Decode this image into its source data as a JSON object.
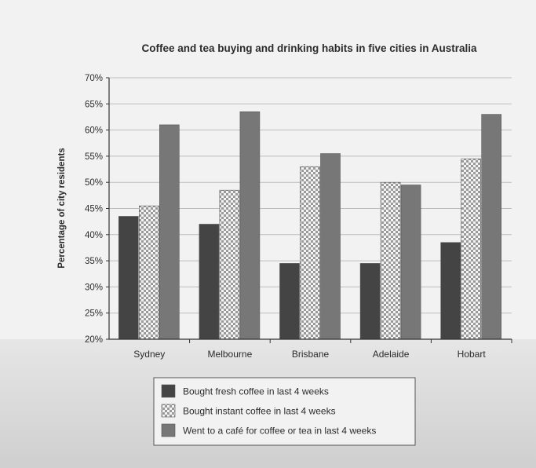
{
  "chart_data": {
    "type": "bar",
    "title": "Coffee and tea buying and drinking habits in five cities in Australia",
    "xlabel": "",
    "ylabel": "Percentage of city residents",
    "categories": [
      "Sydney",
      "Melbourne",
      "Brisbane",
      "Adelaide",
      "Hobart"
    ],
    "series": [
      {
        "name": "Bought fresh coffee in last 4 weeks",
        "values": [
          43.5,
          42,
          34.5,
          34.5,
          38.5
        ],
        "color": "#444444",
        "pattern": "solid"
      },
      {
        "name": "Bought instant coffee in last 4 weeks",
        "values": [
          45.5,
          48.5,
          53,
          50,
          54.5
        ],
        "color": "#dcdcdc",
        "pattern": "checker"
      },
      {
        "name": "Went to a café for coffee or tea in last 4 weeks",
        "values": [
          61,
          63.5,
          55.5,
          49.5,
          63
        ],
        "color": "#777777",
        "pattern": "solid"
      }
    ],
    "yticks": [
      "20%",
      "25%",
      "30%",
      "35%",
      "40%",
      "45%",
      "50%",
      "55%",
      "60%",
      "65%",
      "70%"
    ],
    "ylim": [
      20,
      70
    ],
    "grid": true,
    "legend_position": "bottom-center"
  }
}
